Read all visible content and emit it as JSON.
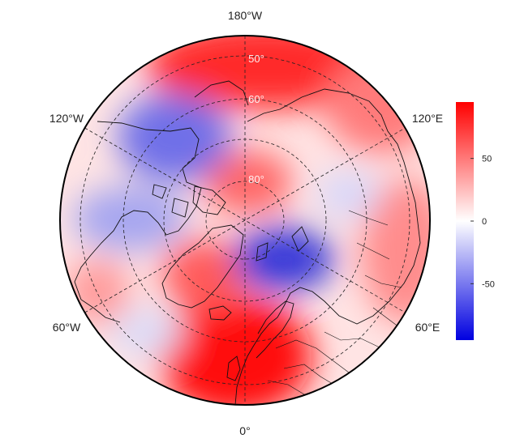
{
  "map": {
    "projection": "north-polar-stereographic",
    "field_colors": {
      "negative": "#1515d8",
      "zero": "#ffffff",
      "positive": "#ff0000"
    },
    "longitude_labels": [
      {
        "key": "180",
        "text": "180°W"
      },
      {
        "key": "120W",
        "text": "120°W"
      },
      {
        "key": "120E",
        "text": "120°E"
      },
      {
        "key": "60W",
        "text": "60°W"
      },
      {
        "key": "60E",
        "text": "60°E"
      },
      {
        "key": "0",
        "text": "0°"
      }
    ],
    "latitude_labels": [
      {
        "key": "50",
        "text": "50°"
      },
      {
        "key": "60",
        "text": "60°"
      },
      {
        "key": "80",
        "text": "80°"
      }
    ],
    "anomaly_centers": [
      {
        "sign": "positive",
        "region": "north-pacific",
        "value": 80
      },
      {
        "sign": "positive",
        "region": "north-atlantic-europe",
        "value": 90
      },
      {
        "sign": "positive",
        "region": "north-pole",
        "value": 40
      },
      {
        "sign": "negative",
        "region": "canada",
        "value": -40
      },
      {
        "sign": "negative",
        "region": "barents-kara-sea",
        "value": -70
      },
      {
        "sign": "negative",
        "region": "baffin-greenland-west",
        "value": -30
      }
    ]
  },
  "colorbar": {
    "min": -95,
    "max": 95,
    "ticks": [
      {
        "value": 50,
        "label": "50"
      },
      {
        "value": 0,
        "label": "0"
      },
      {
        "value": -50,
        "label": "-50"
      }
    ]
  }
}
